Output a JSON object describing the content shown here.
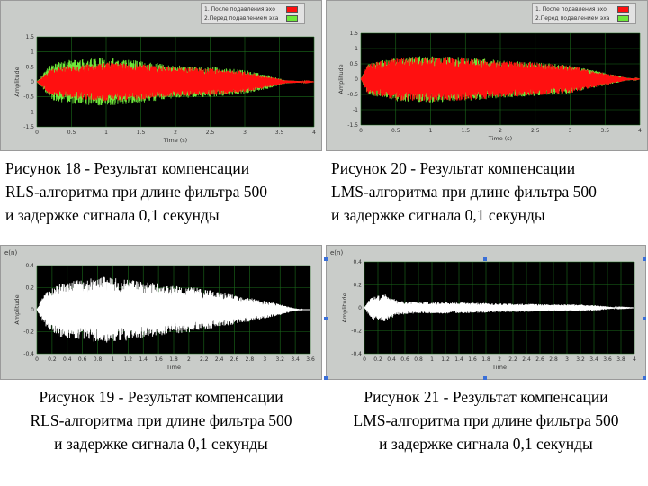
{
  "colors": {
    "plot_bg": "#000000",
    "grid": "#1b6b1b",
    "series_after": "#ff1010",
    "series_before": "#6ee83a",
    "error_signal": "#ffffff"
  },
  "captions": {
    "fig18": [
      "Рисунок 18 - Результат компенсации",
      "RLS-алгоритма при длине фильтра 500",
      "и задержке сигнала 0,1 секунды"
    ],
    "fig20": [
      "Рисунок 20 - Результат компенсации",
      "LMS-алгоритма при длине фильтра 500",
      "и задержке сигнала 0,1 секунды"
    ],
    "fig19": [
      "Рисунок 19 - Результат компенсации",
      "RLS-алгоритма при длине фильтра 500",
      "и задержке сигнала 0,1 секунды"
    ],
    "fig21": [
      "Рисунок 21 - Результат компенсации",
      "LMS-алгоритма при длине фильтра 500",
      "и задержке сигнала 0,1 секунды"
    ]
  },
  "legends": {
    "fig18": [
      "1. После подавления эхо",
      "2.Перед подавлением эха"
    ],
    "fig20": [
      "1. После подавления эхо",
      "2.Перед подавлением эха"
    ]
  },
  "chart_data": [
    {
      "id": "fig18",
      "type": "area",
      "xlabel": "Time (s)",
      "ylabel": "Amplitude",
      "xlim": [
        0,
        4
      ],
      "ylim": [
        -1.5,
        1.5
      ],
      "xticks": [
        "0",
        "0.5",
        "1",
        "1.5",
        "2",
        "2.5",
        "3",
        "3.5",
        "4"
      ],
      "yticks": [
        "1.5",
        "1",
        "0.5",
        "0",
        "-0.5",
        "-1",
        "-1.5"
      ],
      "grid": true,
      "legend": "top-right",
      "series": [
        {
          "name": "1. После подавления эхо",
          "color": "#ff1010",
          "envelope_x": [
            0,
            0.2,
            0.5,
            1.0,
            1.5,
            2.0,
            2.5,
            3.0,
            3.3,
            3.6,
            4.0
          ],
          "envelope_amp": [
            0,
            0.45,
            0.55,
            0.65,
            0.6,
            0.5,
            0.45,
            0.35,
            0.2,
            0.05,
            0
          ]
        },
        {
          "name": "2.Перед подавлением эха",
          "color": "#6ee83a",
          "envelope_x": [
            0,
            0.2,
            0.5,
            1.0,
            1.5,
            2.0,
            2.5,
            3.0,
            3.3,
            3.6,
            4.0
          ],
          "envelope_amp": [
            0,
            0.6,
            0.75,
            0.8,
            0.7,
            0.55,
            0.5,
            0.4,
            0.25,
            0.05,
            0
          ]
        }
      ]
    },
    {
      "id": "fig20",
      "type": "area",
      "xlabel": "Time (s)",
      "ylabel": "Amplitude",
      "xlim": [
        0,
        4
      ],
      "ylim": [
        -1.5,
        1.5
      ],
      "xticks": [
        "0",
        "0.5",
        "1",
        "1.5",
        "2",
        "2.5",
        "3",
        "3.5",
        "4"
      ],
      "yticks": [
        "1.5",
        "1",
        "0.5",
        "0",
        "-0.5",
        "-1",
        "-1.5"
      ],
      "grid": true,
      "legend": "top-right",
      "series": [
        {
          "name": "1. После подавления эхо",
          "color": "#ff1010",
          "envelope_x": [
            0,
            0.1,
            0.5,
            1.0,
            1.5,
            2.0,
            2.5,
            3.0,
            3.3,
            3.5,
            3.8,
            4.0
          ],
          "envelope_amp": [
            0,
            0.5,
            0.7,
            0.75,
            0.7,
            0.6,
            0.55,
            0.45,
            0.3,
            0.2,
            0.05,
            0
          ]
        },
        {
          "name": "2.Перед подавлением эха",
          "color": "#6ee83a",
          "envelope_x": [
            0,
            0.1,
            0.5,
            1.0,
            1.5,
            2.0,
            2.5,
            3.0,
            3.3,
            3.5,
            3.8,
            4.0
          ],
          "envelope_amp": [
            0,
            0.5,
            0.72,
            0.77,
            0.72,
            0.62,
            0.56,
            0.46,
            0.31,
            0.21,
            0.05,
            0
          ]
        }
      ]
    },
    {
      "id": "fig19",
      "type": "area",
      "title": "e(n)",
      "xlabel": "Time",
      "ylabel": "Amplitude",
      "xlim": [
        0,
        3.6
      ],
      "ylim": [
        -0.4,
        0.4
      ],
      "xticks": [
        "0",
        "0.2",
        "0.4",
        "0.6",
        "0.8",
        "1",
        "1.2",
        "1.4",
        "1.6",
        "1.8",
        "2",
        "2.2",
        "2.4",
        "2.6",
        "2.8",
        "3",
        "3.2",
        "3.4",
        "3.6"
      ],
      "yticks": [
        "0.4",
        "0.2",
        "0",
        "-0.2",
        "-0.4"
      ],
      "grid": true,
      "series": [
        {
          "name": "",
          "color": "#ffffff",
          "envelope_x": [
            0,
            0.1,
            0.3,
            0.6,
            0.9,
            1.2,
            1.5,
            1.8,
            2.1,
            2.4,
            2.7,
            3.0,
            3.2,
            3.35,
            3.5,
            3.6
          ],
          "envelope_amp": [
            0,
            0.15,
            0.25,
            0.28,
            0.3,
            0.28,
            0.25,
            0.22,
            0.2,
            0.16,
            0.12,
            0.08,
            0.05,
            0.02,
            0,
            0
          ]
        }
      ]
    },
    {
      "id": "fig21",
      "type": "area",
      "title": "e(n)",
      "xlabel": "Time",
      "ylabel": "Amplitude",
      "xlim": [
        0,
        4
      ],
      "ylim": [
        -0.4,
        0.4
      ],
      "xticks": [
        "0",
        "0.2",
        "0.4",
        "0.6",
        "0.8",
        "1",
        "1.2",
        "1.4",
        "1.6",
        "1.8",
        "2",
        "2.2",
        "2.4",
        "2.6",
        "2.8",
        "3",
        "3.2",
        "3.4",
        "3.6",
        "3.8",
        "4"
      ],
      "yticks": [
        "0.4",
        "0.2",
        "0",
        "-0.2",
        "-0.4"
      ],
      "grid": true,
      "series": [
        {
          "name": "",
          "color": "#ffffff",
          "envelope_x": [
            0,
            0.1,
            0.3,
            0.5,
            0.8,
            1.2,
            1.6,
            2.0,
            2.4,
            2.8,
            3.2,
            3.5,
            3.7,
            4.0
          ],
          "envelope_amp": [
            0,
            0.1,
            0.12,
            0.06,
            0.05,
            0.05,
            0.045,
            0.04,
            0.035,
            0.03,
            0.03,
            0.02,
            0.005,
            0
          ]
        }
      ]
    }
  ]
}
